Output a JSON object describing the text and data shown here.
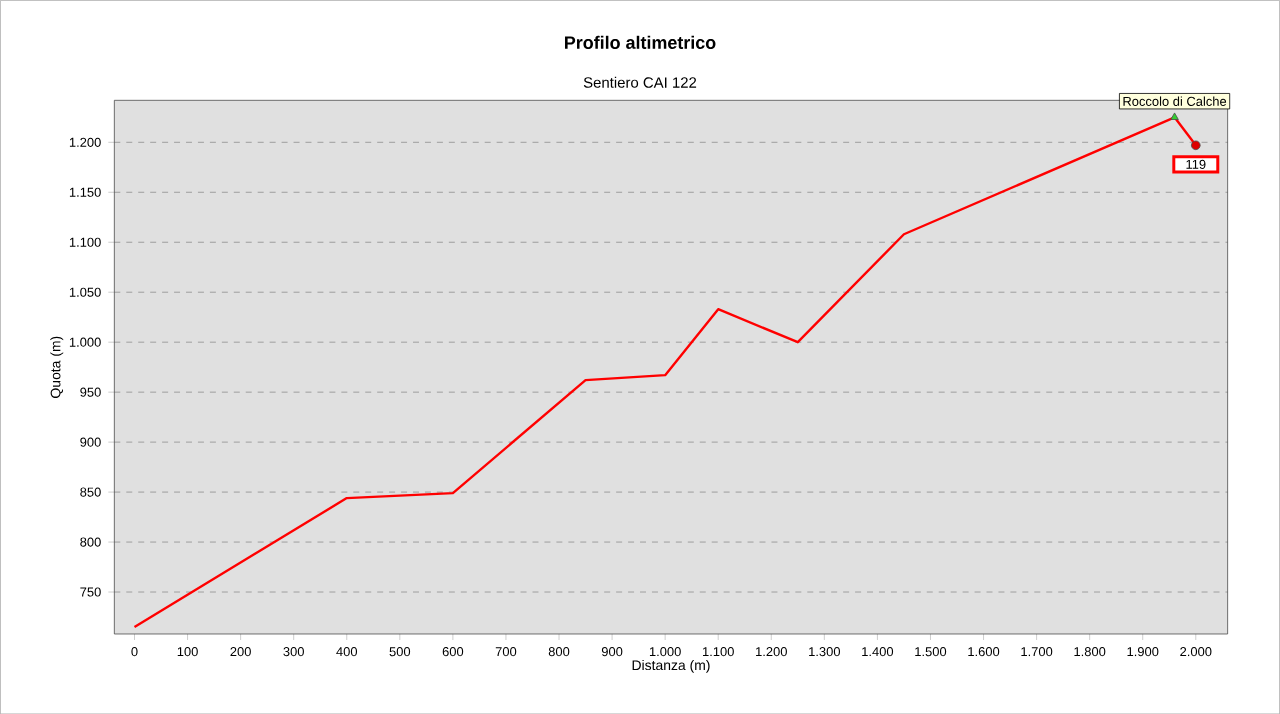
{
  "chart_data": {
    "type": "line",
    "title": "Profilo altimetrico",
    "subtitle": "Sentiero CAI 122",
    "xlabel": "Distanza (m)",
    "ylabel": "Quota (m)",
    "xlim": [
      -38,
      2060
    ],
    "ylim": [
      708,
      1242
    ],
    "xticks": [
      0,
      100,
      200,
      300,
      400,
      500,
      600,
      700,
      800,
      900,
      {
        "value": 1000,
        "label": "1.000"
      },
      {
        "value": 1100,
        "label": "1.100"
      },
      {
        "value": 1200,
        "label": "1.200"
      },
      {
        "value": 1300,
        "label": "1.300"
      },
      {
        "value": 1400,
        "label": "1.400"
      },
      {
        "value": 1500,
        "label": "1.500"
      },
      {
        "value": 1600,
        "label": "1.600"
      },
      {
        "value": 1700,
        "label": "1.700"
      },
      {
        "value": 1800,
        "label": "1.800"
      },
      {
        "value": 1900,
        "label": "1.900"
      },
      {
        "value": 2000,
        "label": "2.000"
      }
    ],
    "yticks": [
      750,
      800,
      850,
      900,
      950,
      {
        "value": 1000,
        "label": "1.000"
      },
      {
        "value": 1050,
        "label": "1.050"
      },
      {
        "value": 1100,
        "label": "1.100"
      },
      {
        "value": 1150,
        "label": "1.150"
      },
      {
        "value": 1200,
        "label": "1.200"
      }
    ],
    "grid": "y",
    "series": [
      {
        "color": "#ff0000",
        "x": [
          0,
          400,
          600,
          850,
          1000,
          1100,
          1250,
          1450,
          1960,
          2000
        ],
        "values": [
          715,
          844,
          849,
          962,
          967,
          1033,
          1000,
          1108,
          1225,
          1197
        ],
        "marker": "none"
      },
      {
        "type": "scatter",
        "color": "#33cc33",
        "x": [
          1960
        ],
        "values": [
          1225
        ],
        "marker": "triangle"
      },
      {
        "type": "scatter",
        "color": "#dd0000",
        "x": [
          2000
        ],
        "values": [
          1197
        ],
        "marker": "circle"
      }
    ],
    "annotations": [
      {
        "text": "Roccolo di Calche",
        "x": 1960,
        "y": 1225
      },
      {
        "text": "119",
        "x": 2000,
        "y": 1197
      }
    ]
  }
}
